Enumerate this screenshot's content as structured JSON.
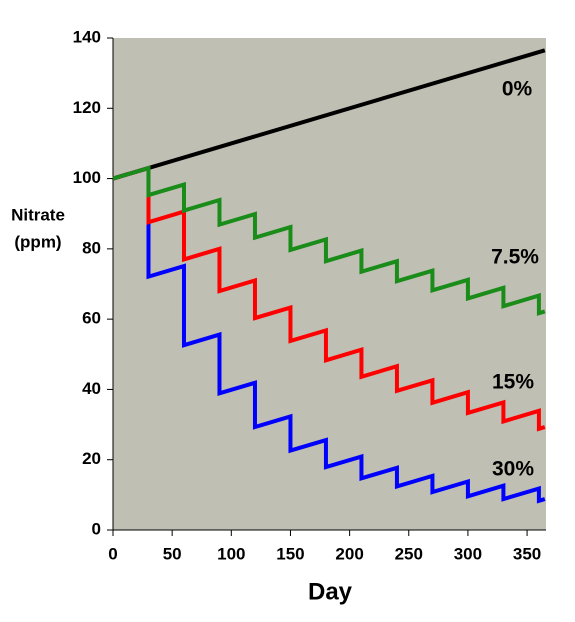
{
  "chart_data": {
    "type": "line",
    "x_label": "Day",
    "y_label": [
      "Nitrate",
      "(ppm)"
    ],
    "xlim": [
      0,
      366
    ],
    "xticks": [
      0,
      50,
      100,
      150,
      200,
      250,
      300,
      350
    ],
    "ylim": [
      0,
      140
    ],
    "yticks": [
      0,
      20,
      40,
      60,
      80,
      100,
      120,
      140
    ],
    "series": [
      {
        "name": "0%",
        "color": "#000000",
        "x": [
          0,
          365
        ],
        "values": [
          100,
          136.5
        ]
      },
      {
        "name": "7.5%",
        "color": "#1a8c1a",
        "x": [
          0,
          30,
          30,
          60,
          60,
          90,
          90,
          120,
          120,
          150,
          150,
          180,
          180,
          210,
          210,
          240,
          240,
          270,
          270,
          300,
          300,
          330,
          330,
          360,
          360,
          365
        ],
        "values": [
          100,
          103,
          95.3,
          98.3,
          90.9,
          93.9,
          86.9,
          89.9,
          83.2,
          86.2,
          79.7,
          82.7,
          76.5,
          79.5,
          73.5,
          76.5,
          70.8,
          73.8,
          68.2,
          71.2,
          65.9,
          68.9,
          63.7,
          66.7,
          61.7,
          62.2
        ]
      },
      {
        "name": "15%",
        "color": "#ff0000",
        "x": [
          0,
          30,
          30,
          60,
          60,
          90,
          90,
          120,
          120,
          150,
          150,
          180,
          180,
          210,
          210,
          240,
          240,
          270,
          270,
          300,
          300,
          330,
          330,
          360,
          360,
          365
        ],
        "values": [
          100,
          103,
          87.6,
          90.6,
          77.0,
          80.0,
          68.0,
          71.0,
          60.3,
          63.3,
          53.8,
          56.8,
          48.3,
          51.3,
          43.6,
          46.6,
          39.6,
          42.6,
          36.2,
          39.2,
          33.3,
          36.3,
          30.9,
          33.9,
          28.8,
          29.3
        ]
      },
      {
        "name": "30%",
        "color": "#0000ff",
        "x": [
          0,
          30,
          30,
          60,
          60,
          90,
          90,
          120,
          120,
          150,
          150,
          180,
          180,
          210,
          210,
          240,
          240,
          270,
          270,
          300,
          300,
          330,
          330,
          360,
          360,
          365
        ],
        "values": [
          100,
          103,
          72.1,
          75.1,
          52.6,
          55.6,
          38.9,
          41.9,
          29.3,
          32.3,
          22.6,
          25.6,
          17.9,
          20.9,
          14.7,
          17.7,
          12.4,
          15.4,
          10.8,
          13.8,
          9.6,
          12.6,
          8.8,
          11.8,
          8.3,
          8.8
        ]
      }
    ]
  }
}
